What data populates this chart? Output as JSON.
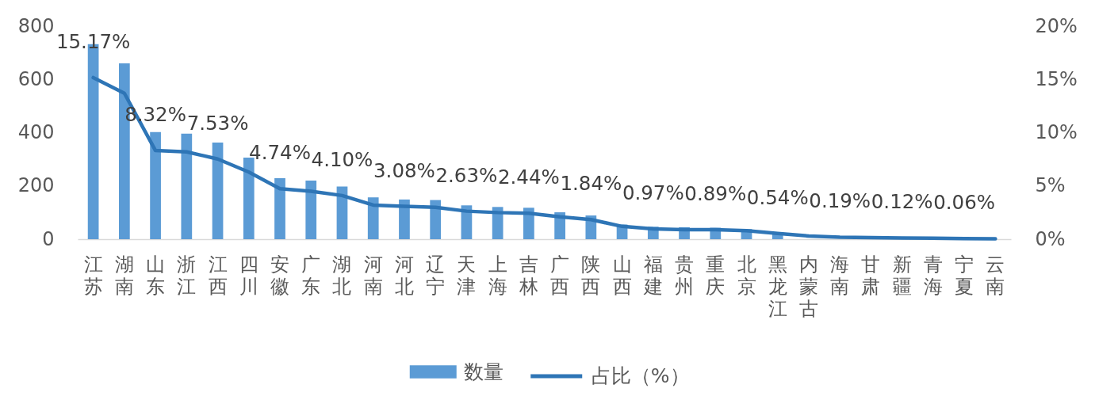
{
  "chart_data": {
    "type": "bar",
    "categories": [
      "江苏",
      "湖南",
      "山东",
      "浙江",
      "江西",
      "四川",
      "安徽",
      "广东",
      "湖北",
      "河南",
      "河北",
      "辽宁",
      "天津",
      "上海",
      "吉林",
      "广西",
      "陕西",
      "山西",
      "福建",
      "贵州",
      "重庆",
      "北京",
      "黑龙江",
      "内蒙古",
      "海南",
      "甘肃",
      "新疆",
      "青海",
      "宁夏",
      "云南"
    ],
    "series": [
      {
        "name": "数量",
        "type": "bar",
        "color": "#5b9bd5",
        "values": [
          732,
          660,
          402,
          396,
          363,
          306,
          229,
          220,
          198,
          157,
          149,
          147,
          127,
          121,
          118,
          101,
          89,
          55,
          47,
          45,
          43,
          38,
          26,
          null,
          null,
          null,
          null,
          null,
          null,
          null
        ]
      },
      {
        "name": "占比（%）",
        "type": "line",
        "axis": "y2",
        "color": "#2e75b6",
        "values": [
          15.17,
          13.7,
          8.32,
          8.2,
          7.53,
          6.3,
          4.74,
          4.5,
          4.1,
          3.2,
          3.08,
          3.0,
          2.63,
          2.5,
          2.44,
          2.1,
          1.84,
          1.2,
          0.97,
          0.9,
          0.89,
          0.8,
          0.54,
          0.3,
          0.19,
          0.15,
          0.12,
          0.1,
          0.06,
          0.03
        ],
        "value_labels": [
          "15.17%",
          null,
          "8.32%",
          null,
          "7.53%",
          null,
          "4.74%",
          null,
          "4.10%",
          null,
          "3.08%",
          null,
          "2.63%",
          null,
          "2.44%",
          null,
          "1.84%",
          null,
          "0.97%",
          null,
          "0.89%",
          null,
          "0.54%",
          null,
          "0.19%",
          null,
          "0.12%",
          null,
          "0.06%",
          null
        ]
      }
    ],
    "ylim": [
      0,
      800
    ],
    "yticks": [
      0,
      200,
      400,
      600,
      800
    ],
    "y2lim": [
      0,
      20
    ],
    "y2ticks": [
      {
        "value": 0,
        "label": "0%"
      },
      {
        "value": 5,
        "label": "5%"
      },
      {
        "value": 10,
        "label": "10%"
      },
      {
        "value": 15,
        "label": "15%"
      },
      {
        "value": 20,
        "label": "20%"
      }
    ],
    "grid": false,
    "legend": "bottom"
  }
}
